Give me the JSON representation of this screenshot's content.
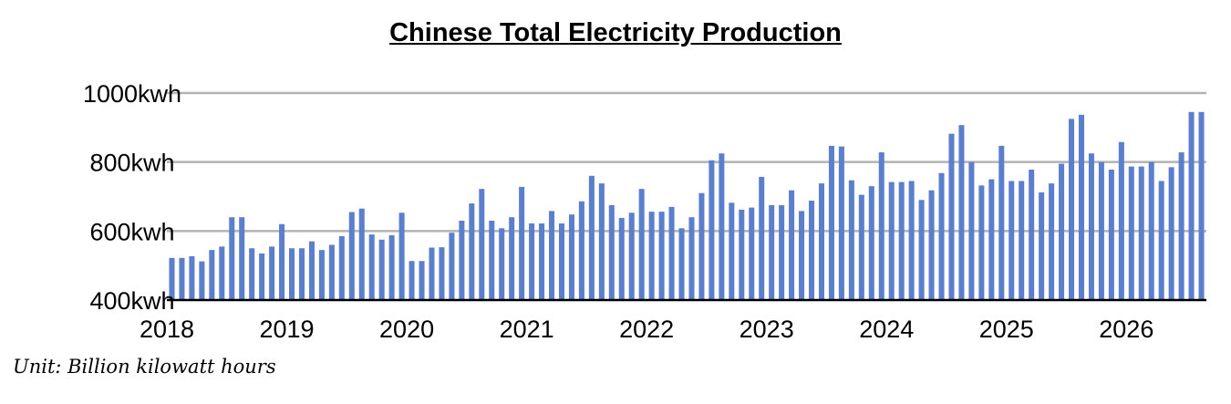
{
  "chart_data": {
    "type": "bar",
    "title": "Chinese Total Electricity Production",
    "note": "Unit: Billion kilowatt hours",
    "xlabel": "",
    "ylabel": "",
    "ylim": [
      400,
      1000
    ],
    "yticks": [
      400,
      600,
      800,
      1000
    ],
    "ytick_labels": [
      "400kwh",
      "600kwh",
      "800kwh",
      "1000kwh"
    ],
    "xtick_labels": [
      "2018",
      "2019",
      "2020",
      "2021",
      "2022",
      "2023",
      "2024",
      "2025",
      "2026"
    ],
    "grid": true,
    "bar_color": "#5b7fcc",
    "grid_color": "#b3b3b3",
    "values": [
      522,
      522,
      527,
      512,
      545,
      555,
      640,
      640,
      550,
      535,
      555,
      620,
      550,
      550,
      570,
      545,
      560,
      585,
      655,
      665,
      590,
      575,
      588,
      653,
      513,
      513,
      552,
      553,
      595,
      630,
      680,
      722,
      630,
      608,
      640,
      728,
      622,
      622,
      658,
      622,
      648,
      686,
      760,
      738,
      675,
      638,
      653,
      722,
      656,
      656,
      670,
      608,
      640,
      710,
      805,
      825,
      682,
      662,
      668,
      757,
      675,
      675,
      718,
      658,
      688,
      738,
      847,
      845,
      747,
      705,
      730,
      828,
      742,
      742,
      745,
      690,
      718,
      768,
      882,
      907,
      800,
      732,
      750,
      847,
      745,
      745,
      778,
      712,
      738,
      795,
      925,
      937,
      825,
      800,
      778,
      858,
      787,
      787,
      800,
      745,
      785,
      828,
      945,
      945
    ]
  }
}
